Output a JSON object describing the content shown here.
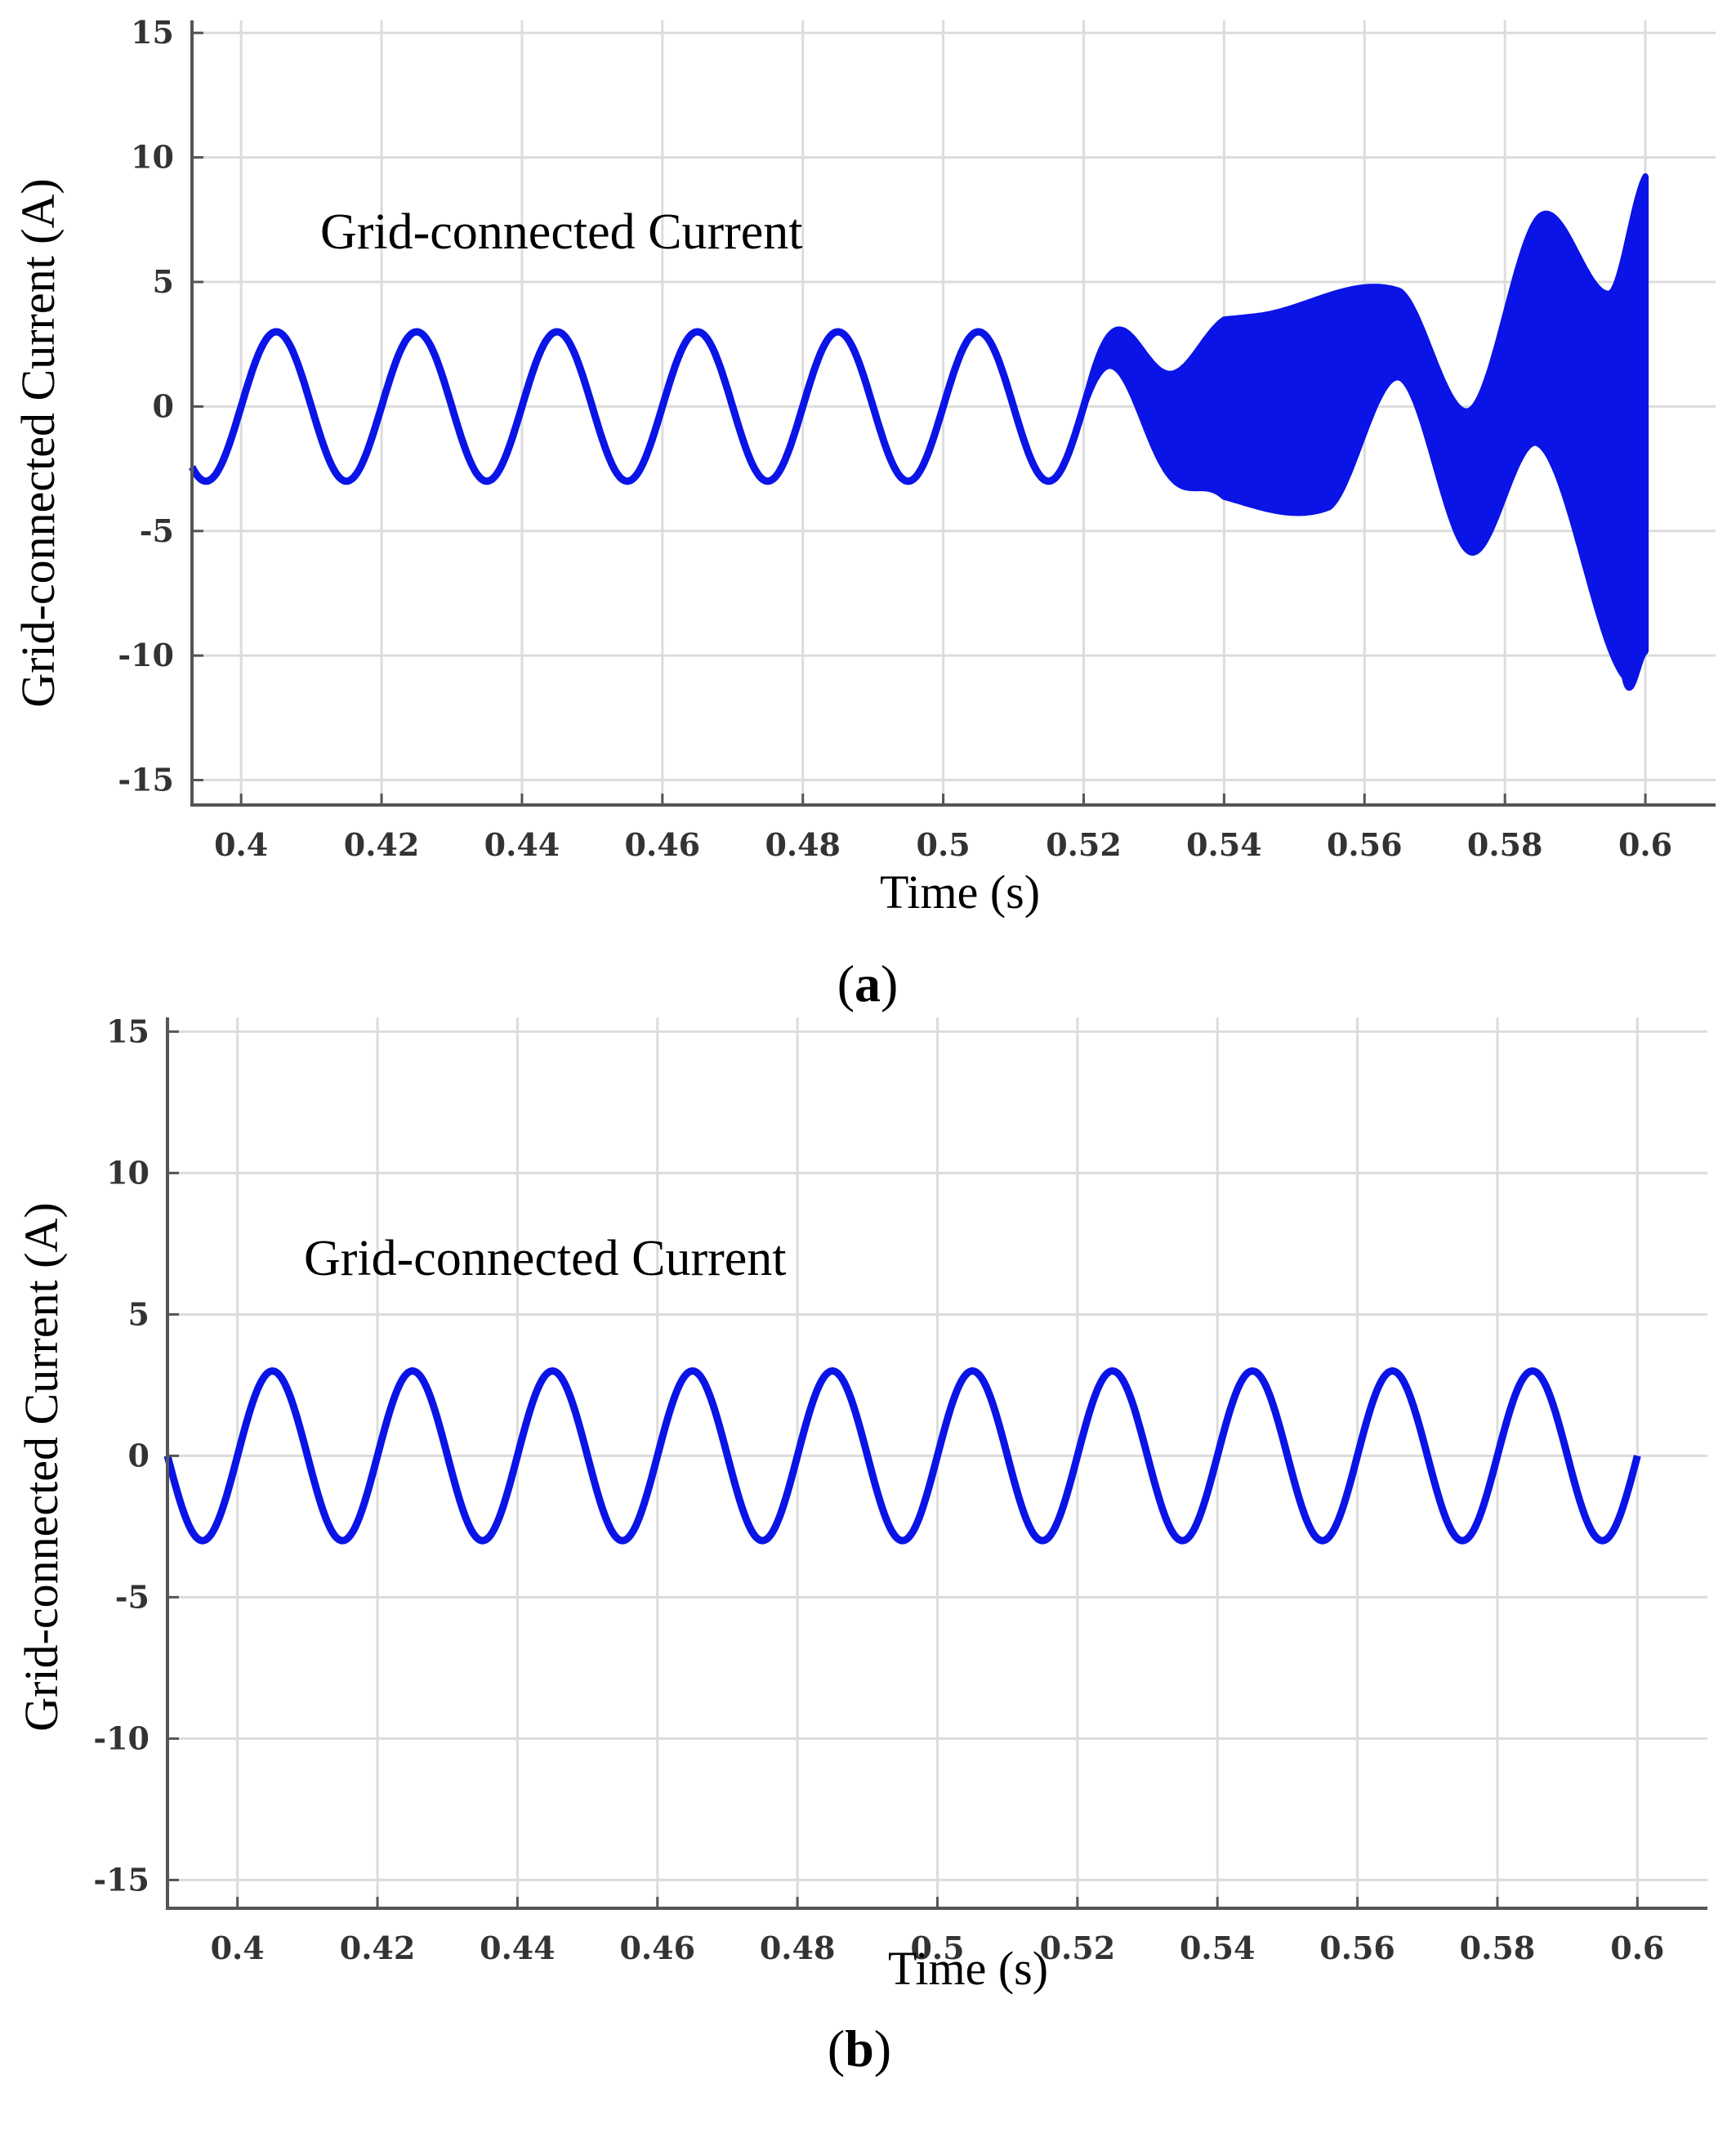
{
  "chart_data": [
    {
      "type": "line",
      "panel_label": "a",
      "annotation": "Grid-connected Current",
      "xlabel": "Time (s)",
      "ylabel": "Grid-connected Current (A)",
      "xlim": [
        0.393,
        0.61
      ],
      "ylim": [
        -16,
        15.5
      ],
      "xticks": [
        "0.4",
        "0.42",
        "0.44",
        "0.46",
        "0.48",
        "0.5",
        "0.52",
        "0.54",
        "0.56",
        "0.58",
        "0.6"
      ],
      "yticks": [
        "15",
        "10",
        "5",
        "0",
        "-5",
        "-10",
        "-15"
      ],
      "grid": true,
      "series": [
        {
          "color": "#0a14e6",
          "signal": "50 Hz sinusoid, amplitude 3 A, stable to ~0.52 s, then growing high-frequency oscillation",
          "frequency_hz": 50,
          "amplitude": 3,
          "t_start": 0.393,
          "t_end": 0.6,
          "upper_envelope": [
            {
              "x": 0.405,
              "y": 3.0
            },
            {
              "x": 0.425,
              "y": 3.0
            },
            {
              "x": 0.445,
              "y": 3.0
            },
            {
              "x": 0.465,
              "y": 3.0
            },
            {
              "x": 0.485,
              "y": 3.0
            },
            {
              "x": 0.505,
              "y": 3.0
            },
            {
              "x": 0.525,
              "y": 3.2
            },
            {
              "x": 0.545,
              "y": 3.6
            },
            {
              "x": 0.565,
              "y": 4.6
            },
            {
              "x": 0.575,
              "y": -0.2
            },
            {
              "x": 0.585,
              "y": 7.6
            },
            {
              "x": 0.595,
              "y": 4.5
            },
            {
              "x": 0.6,
              "y": 9.2
            }
          ],
          "lower_envelope": [
            {
              "x": 0.395,
              "y": -3.0
            },
            {
              "x": 0.415,
              "y": -3.0
            },
            {
              "x": 0.435,
              "y": -3.0
            },
            {
              "x": 0.455,
              "y": -3.0
            },
            {
              "x": 0.475,
              "y": -3.0
            },
            {
              "x": 0.495,
              "y": -3.0
            },
            {
              "x": 0.515,
              "y": -3.0
            },
            {
              "x": 0.535,
              "y": -3.3
            },
            {
              "x": 0.555,
              "y": -4.0
            },
            {
              "x": 0.565,
              "y": 1.2
            },
            {
              "x": 0.575,
              "y": -5.8
            },
            {
              "x": 0.585,
              "y": -1.5
            },
            {
              "x": 0.597,
              "y": -10.8
            },
            {
              "x": 0.6,
              "y": -9.8
            }
          ]
        }
      ]
    },
    {
      "type": "line",
      "panel_label": "b",
      "annotation": "Grid-connected Current",
      "xlabel": "Time (s)",
      "ylabel": "Grid-connected Current (A)",
      "xlim": [
        0.39,
        0.61
      ],
      "ylim": [
        -16,
        15.5
      ],
      "xticks": [
        "0.4",
        "0.42",
        "0.44",
        "0.46",
        "0.48",
        "0.5",
        "0.52",
        "0.54",
        "0.56",
        "0.58",
        "0.6"
      ],
      "yticks": [
        "15",
        "10",
        "5",
        "0",
        "-5",
        "-10",
        "-15"
      ],
      "grid": true,
      "series": [
        {
          "color": "#0a14e6",
          "signal": "stable 50 Hz sinusoid, amplitude 3 A",
          "frequency_hz": 50,
          "amplitude": 3,
          "t_start": 0.39,
          "t_end": 0.6
        }
      ]
    }
  ]
}
